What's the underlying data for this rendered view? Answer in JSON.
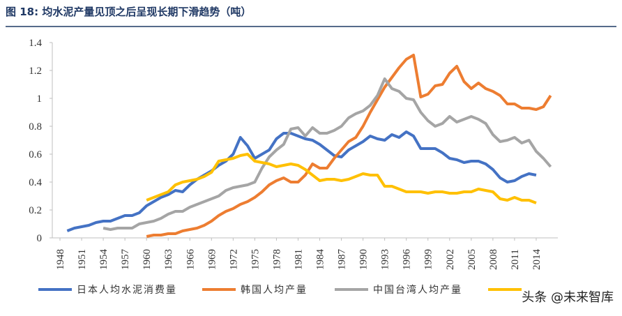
{
  "chart_data": {
    "type": "line",
    "title": "图 18:  均水泥产量见顶之后呈现长期下滑趋势（吨）",
    "watermark": "头条 @未来智库",
    "x": [
      1948,
      1949,
      1950,
      1951,
      1952,
      1953,
      1954,
      1955,
      1956,
      1957,
      1958,
      1959,
      1960,
      1961,
      1962,
      1963,
      1964,
      1965,
      1966,
      1967,
      1968,
      1969,
      1970,
      1971,
      1972,
      1973,
      1974,
      1975,
      1976,
      1977,
      1978,
      1979,
      1980,
      1981,
      1982,
      1983,
      1984,
      1985,
      1986,
      1987,
      1988,
      1989,
      1990,
      1991,
      1992,
      1993,
      1994,
      1995,
      1996,
      1997,
      1998,
      1999,
      2000,
      2001,
      2002,
      2003,
      2004,
      2005,
      2006,
      2007,
      2008,
      2009,
      2010,
      2011,
      2012,
      2013,
      2014,
      2015,
      2016
    ],
    "xlim": [
      1948,
      2017
    ],
    "xticks": [
      1948,
      1951,
      1954,
      1957,
      1960,
      1963,
      1966,
      1969,
      1972,
      1975,
      1978,
      1981,
      1984,
      1987,
      1990,
      1993,
      1996,
      1999,
      2002,
      2005,
      2008,
      2011,
      2014
    ],
    "ylim": [
      0,
      1.4
    ],
    "yticks": [
      0,
      0.2,
      0.4,
      0.6,
      0.8,
      1,
      1.2,
      1.4
    ],
    "series": [
      {
        "name": "日本人均水泥消费量",
        "color": "#4472c4",
        "values": [
          null,
          0.05,
          0.07,
          0.08,
          0.09,
          0.11,
          0.12,
          0.12,
          0.14,
          0.16,
          0.16,
          0.18,
          0.23,
          0.26,
          0.29,
          0.31,
          0.34,
          0.33,
          0.38,
          0.42,
          0.45,
          0.48,
          0.52,
          0.55,
          0.6,
          0.72,
          0.66,
          0.57,
          0.6,
          0.63,
          0.71,
          0.75,
          0.75,
          0.73,
          0.71,
          0.7,
          0.67,
          0.63,
          0.59,
          0.58,
          0.63,
          0.66,
          0.69,
          0.73,
          0.71,
          0.7,
          0.74,
          0.72,
          0.76,
          0.73,
          0.64,
          0.64,
          0.64,
          0.61,
          0.57,
          0.56,
          0.54,
          0.55,
          0.55,
          0.53,
          0.49,
          0.43,
          0.4,
          0.41,
          0.44,
          0.46,
          0.45,
          null,
          null
        ]
      },
      {
        "name": "韩国人均产量",
        "color": "#ed7d31",
        "values": [
          null,
          null,
          null,
          null,
          null,
          null,
          null,
          null,
          null,
          null,
          null,
          null,
          0.01,
          0.02,
          0.02,
          0.03,
          0.03,
          0.05,
          0.06,
          0.07,
          0.09,
          0.12,
          0.16,
          0.19,
          0.21,
          0.24,
          0.26,
          0.29,
          0.33,
          0.38,
          0.41,
          0.43,
          0.4,
          0.4,
          0.45,
          0.53,
          0.5,
          0.5,
          0.57,
          0.63,
          0.69,
          0.72,
          0.8,
          0.9,
          0.99,
          1.08,
          1.15,
          1.22,
          1.28,
          1.31,
          1.01,
          1.03,
          1.09,
          1.1,
          1.18,
          1.23,
          1.12,
          1.07,
          1.11,
          1.07,
          1.05,
          1.02,
          0.96,
          0.96,
          0.93,
          0.93,
          0.92,
          0.94,
          1.02
        ]
      },
      {
        "name": "中国台湾人均产量",
        "color": "#a5a5a5",
        "values": [
          null,
          null,
          null,
          null,
          null,
          null,
          0.07,
          0.06,
          0.07,
          0.07,
          0.07,
          0.1,
          0.11,
          0.12,
          0.14,
          0.17,
          0.19,
          0.19,
          0.22,
          0.24,
          0.26,
          0.28,
          0.3,
          0.34,
          0.36,
          0.37,
          0.38,
          0.4,
          0.5,
          0.58,
          0.63,
          0.67,
          0.78,
          0.79,
          0.73,
          0.79,
          0.75,
          0.75,
          0.77,
          0.8,
          0.86,
          0.89,
          0.91,
          0.95,
          1.02,
          1.14,
          1.07,
          1.05,
          1.0,
          0.99,
          0.9,
          0.84,
          0.8,
          0.82,
          0.87,
          0.83,
          0.85,
          0.87,
          0.85,
          0.82,
          0.74,
          0.69,
          0.7,
          0.72,
          0.68,
          0.7,
          0.62,
          0.57,
          0.51
        ]
      },
      {
        "color": "#ffc000",
        "values": [
          null,
          null,
          null,
          null,
          null,
          null,
          null,
          null,
          null,
          null,
          null,
          null,
          0.27,
          0.29,
          0.31,
          0.33,
          0.38,
          0.4,
          0.41,
          0.42,
          0.44,
          0.47,
          0.55,
          0.56,
          0.57,
          0.59,
          0.6,
          0.55,
          0.54,
          0.53,
          0.51,
          0.52,
          0.53,
          0.52,
          0.49,
          0.45,
          0.41,
          0.42,
          0.42,
          0.41,
          0.42,
          0.44,
          0.46,
          0.45,
          0.45,
          0.37,
          0.37,
          0.35,
          0.33,
          0.33,
          0.33,
          0.32,
          0.33,
          0.33,
          0.32,
          0.32,
          0.33,
          0.33,
          0.35,
          0.34,
          0.33,
          0.28,
          0.27,
          0.29,
          0.27,
          0.27,
          0.25,
          null,
          null
        ]
      }
    ]
  }
}
